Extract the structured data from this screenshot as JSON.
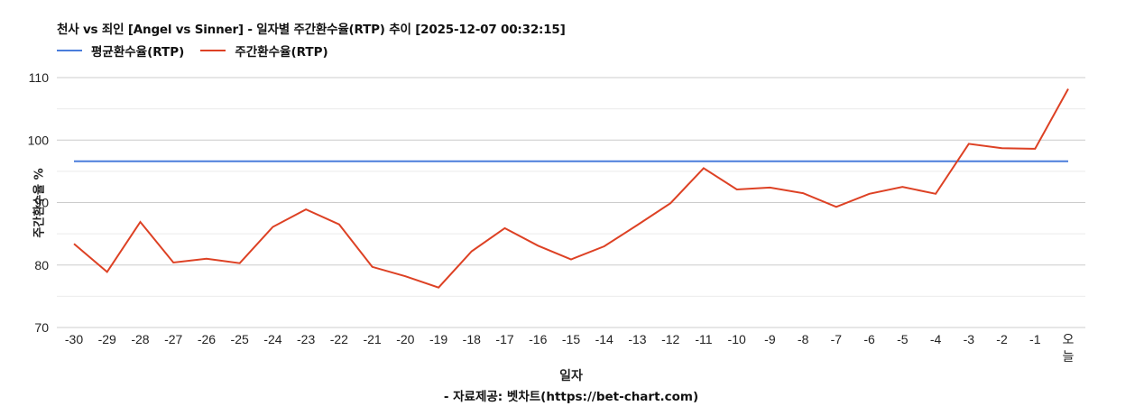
{
  "title": "천사 vs 죄인 [Angel vs Sinner] - 일자별 주간환수율(RTP) 추이 [2025-12-07 00:32:15]",
  "legend": [
    {
      "label": "평균환수율(RTP)",
      "color": "#4a7ddb"
    },
    {
      "label": "주간환수율(RTP)",
      "color": "#dd4124"
    }
  ],
  "axis": {
    "ylabel": "주간환수율 %",
    "xlabel": "일자"
  },
  "source": "- 자료제공: 벳차트(https://bet-chart.com)",
  "chart_data": {
    "type": "line",
    "title": "천사 vs 죄인 [Angel vs Sinner] - 일자별 주간환수율(RTP) 추이 [2025-12-07 00:32:15]",
    "xlabel": "일자",
    "ylabel": "주간환수율 %",
    "ylim": [
      70,
      110
    ],
    "yticks": [
      70,
      80,
      90,
      100,
      110
    ],
    "grid": true,
    "legend_position": "top-left",
    "categories": [
      "-30",
      "-29",
      "-28",
      "-27",
      "-26",
      "-25",
      "-24",
      "-23",
      "-22",
      "-21",
      "-20",
      "-19",
      "-18",
      "-17",
      "-16",
      "-15",
      "-14",
      "-13",
      "-12",
      "-11",
      "-10",
      "-9",
      "-8",
      "-7",
      "-6",
      "-5",
      "-4",
      "-3",
      "-2",
      "-1",
      "오늘"
    ],
    "series": [
      {
        "name": "평균환수율(RTP)",
        "color": "#4a7ddb",
        "values": [
          96.6,
          96.6,
          96.6,
          96.6,
          96.6,
          96.6,
          96.6,
          96.6,
          96.6,
          96.6,
          96.6,
          96.6,
          96.6,
          96.6,
          96.6,
          96.6,
          96.6,
          96.6,
          96.6,
          96.6,
          96.6,
          96.6,
          96.6,
          96.6,
          96.6,
          96.6,
          96.6,
          96.6,
          96.6,
          96.6,
          96.6
        ]
      },
      {
        "name": "주간환수율(RTP)",
        "color": "#dd4124",
        "values": [
          83.4,
          78.9,
          86.9,
          80.4,
          81.0,
          80.3,
          86.1,
          88.9,
          86.5,
          79.7,
          78.2,
          76.4,
          82.2,
          85.9,
          83.1,
          80.9,
          83.0,
          86.4,
          89.9,
          95.5,
          92.1,
          92.4,
          91.5,
          89.3,
          91.4,
          92.5,
          91.4,
          99.4,
          98.7,
          98.6,
          108.2
        ]
      }
    ]
  }
}
